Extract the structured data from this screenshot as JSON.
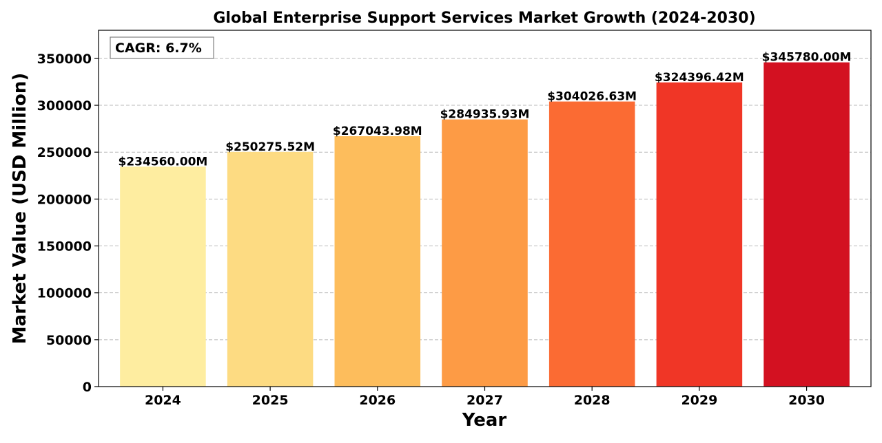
{
  "chart_data": {
    "type": "bar",
    "title": "Global Enterprise Support Services Market Growth (2024-2030)",
    "xlabel": "Year",
    "ylabel": "Market Value (USD Million)",
    "categories": [
      "2024",
      "2025",
      "2026",
      "2027",
      "2028",
      "2029",
      "2030"
    ],
    "values": [
      234560.0,
      250275.52,
      267043.98,
      284935.93,
      304026.63,
      324396.42,
      345780.0
    ],
    "data_labels": [
      "$234560.00M",
      "$250275.52M",
      "$267043.98M",
      "$284935.93M",
      "$304026.63M",
      "$324396.42M",
      "$345780.00M"
    ],
    "bar_colors": [
      "#feeda0",
      "#fddb82",
      "#fdbd5c",
      "#fd9b45",
      "#fb6b33",
      "#f03626",
      "#d31121"
    ],
    "yticks": [
      0,
      50000,
      100000,
      150000,
      200000,
      250000,
      300000,
      350000
    ],
    "ytick_labels": [
      "0",
      "50000",
      "100000",
      "150000",
      "200000",
      "250000",
      "300000",
      "350000"
    ],
    "ylim": [
      0,
      380000
    ],
    "grid": "y-dashed",
    "annotation": "CAGR: 6.7%"
  }
}
